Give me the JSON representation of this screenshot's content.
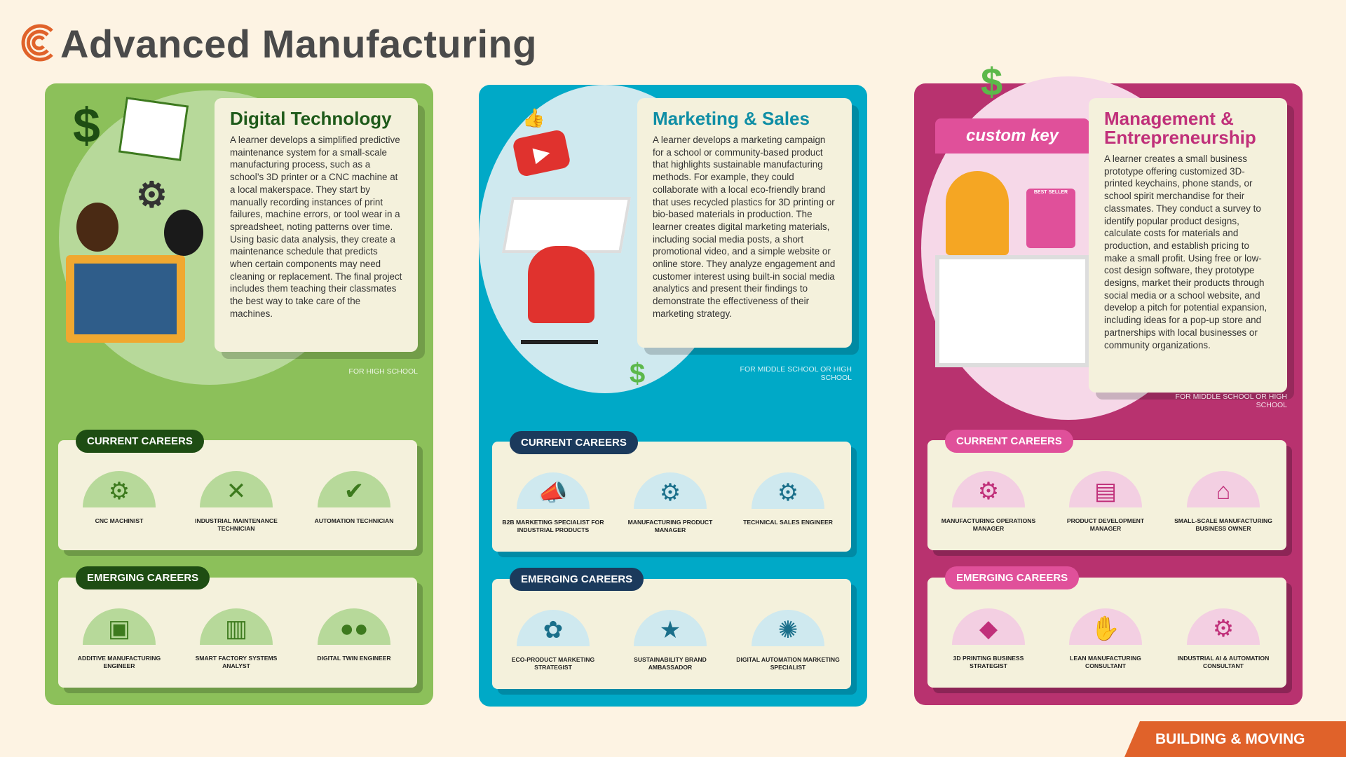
{
  "header": {
    "title": "Advanced Manufacturing",
    "logo_icon": "c-logo-icon"
  },
  "colors": {
    "background": "#fdf3e3",
    "green": "#8cc05a",
    "teal": "#00a9c7",
    "magenta": "#b8326f",
    "orange": "#e0622a"
  },
  "columns": [
    {
      "title": "Digital Technology",
      "description": "A learner develops a simplified predictive maintenance system for a small-scale manufacturing process, such as a school’s 3D printer or a CNC machine at a local makerspace. They start by manually recording instances of print failures, machine errors, or tool wear in a spreadsheet, noting patterns over time. Using basic data analysis, they create a maintenance schedule that predicts when certain components may need cleaning or replacement. The final project includes them teaching their classmates the best way to take care of the machines.",
      "level": "FOR HIGH SCHOOL",
      "current_label": "CURRENT CAREERS",
      "current": [
        {
          "label": "CNC Machinist",
          "icon": "computer-gear-icon"
        },
        {
          "label": "Industrial Maintenance Technician",
          "icon": "wrench-screwdriver-icon"
        },
        {
          "label": "Automation Technician",
          "icon": "gear-check-icon"
        }
      ],
      "emerging_label": "EMERGING CAREERS",
      "emerging": [
        {
          "label": "Additive Manufacturing Engineer",
          "icon": "3d-printer-icon"
        },
        {
          "label": "Smart Factory Systems Analyst",
          "icon": "analytics-icon"
        },
        {
          "label": "Digital Twin Engineer",
          "icon": "twin-heads-icon"
        }
      ]
    },
    {
      "title": "Marketing & Sales",
      "description": "A learner develops a marketing campaign for a school or community-based product that highlights sustainable manufacturing methods. For example, they could collaborate with a local eco-friendly brand that uses recycled plastics for 3D printing or bio-based materials in production. The learner creates digital marketing materials, including social media posts, a short promotional video, and a simple website or online store. They analyze engagement and customer interest using built-in social media analytics and present their findings to demonstrate the effectiveness of their marketing strategy.",
      "level": "FOR MIDDLE SCHOOL OR HIGH SCHOOL",
      "current_label": "CURRENT CAREERS",
      "current": [
        {
          "label": "B2B Marketing Specialist for Industrial Products",
          "icon": "megaphone-icon"
        },
        {
          "label": "Manufacturing Product Manager",
          "icon": "gear-person-icon"
        },
        {
          "label": "Technical Sales Engineer",
          "icon": "sales-gear-icon"
        }
      ],
      "emerging_label": "EMERGING CAREERS",
      "emerging": [
        {
          "label": "Eco-Product Marketing Strategist",
          "icon": "eco-gear-icon"
        },
        {
          "label": "Sustainability Brand Ambassador",
          "icon": "leaf-star-icon"
        },
        {
          "label": "Digital Automation Marketing Specialist",
          "icon": "network-gear-icon"
        }
      ]
    },
    {
      "title": "Management & Entrepreneurship",
      "description": "A learner creates a small business prototype offering customized 3D-printed keychains, phone stands, or school spirit merchandise for their classmates. They conduct a survey to identify popular product designs, calculate costs for materials and production, and establish pricing to make a small profit. Using free or low-cost design software, they prototype designs, market their products through social media or a school website, and develop a pitch for potential expansion, including ideas for a pop-up store and partnerships with local businesses or community organizations.",
      "level": "FOR MIDDLE SCHOOL OR HIGH SCHOOL",
      "current_label": "CURRENT CAREERS",
      "current": [
        {
          "label": "Manufacturing Operations Manager",
          "icon": "robot-arm-icon"
        },
        {
          "label": "Product Development Manager",
          "icon": "box-idea-icon"
        },
        {
          "label": "Small-Scale Manufacturing Business Owner",
          "icon": "storefront-icon"
        }
      ],
      "emerging_label": "EMERGING CAREERS",
      "emerging": [
        {
          "label": "3D Printing Business Strategist",
          "icon": "cube-icon"
        },
        {
          "label": "Lean Manufacturing Consultant",
          "icon": "hand-idea-icon"
        },
        {
          "label": "Industrial AI & Automation Consultant",
          "icon": "ai-brain-icon"
        }
      ]
    }
  ],
  "illustration": {
    "store_sign": "custom key",
    "best_seller": "BEST SELLER"
  },
  "footer": {
    "label": "BUILDING & MOVING"
  }
}
